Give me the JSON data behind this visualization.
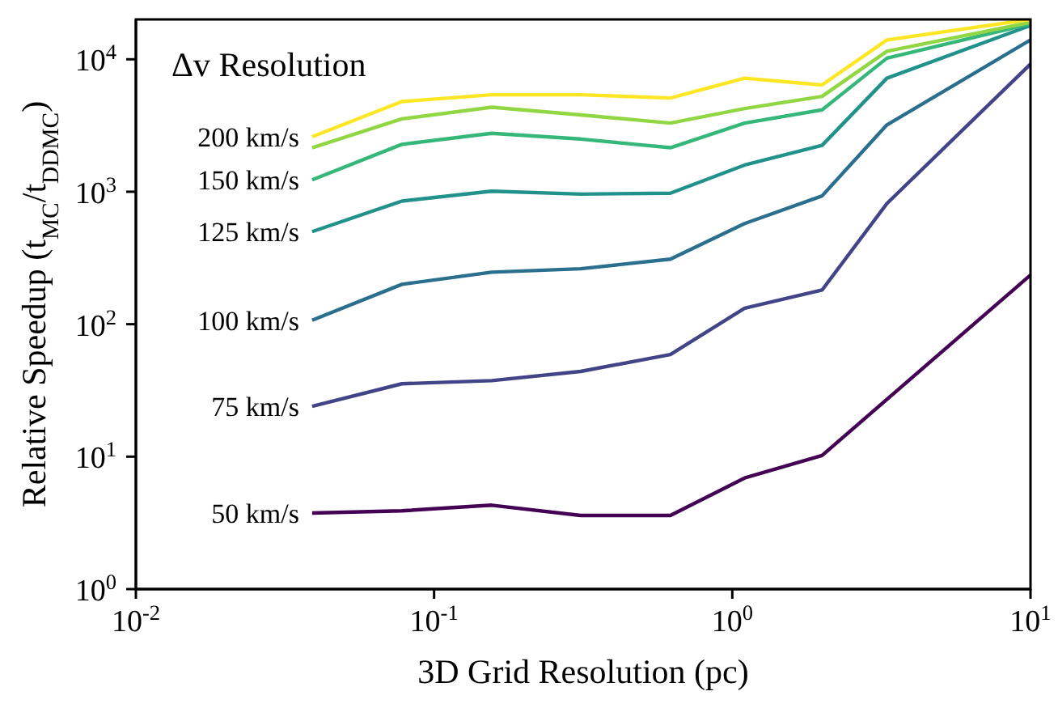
{
  "chart_data": {
    "type": "line",
    "xlabel": "3D Grid Resolution (pc)",
    "ylabel": "Relative Speedup (t$_{MC}$/t$_{DDMC}$)",
    "legend_title": "Δv Resolution",
    "log": "xy",
    "xlim": [
      0.01,
      10
    ],
    "ylim": [
      1,
      20000
    ],
    "xticks": [
      {
        "value": 0.01,
        "label": "10$^{-2}$"
      },
      {
        "value": 0.1,
        "label": "10$^{-1}$"
      },
      {
        "value": 1,
        "label": "10$^{0}$"
      },
      {
        "value": 10,
        "label": "10$^{1}$"
      }
    ],
    "yticks": [
      {
        "value": 1,
        "label": "10$^{0}$"
      },
      {
        "value": 10,
        "label": "10$^{1}$"
      },
      {
        "value": 100,
        "label": "10$^{2}$"
      },
      {
        "value": 1000,
        "label": "10$^{3}$"
      },
      {
        "value": 10000,
        "label": "10$^{4}$"
      }
    ],
    "x": [
      0.039,
      0.078,
      0.156,
      0.31,
      0.62,
      1.1,
      2,
      3.3,
      10
    ],
    "series": [
      {
        "color": "#440154",
        "name": "50 km/s",
        "x": [
          0.039,
          0.078,
          0.156,
          0.31,
          0.62,
          1.1,
          2,
          10
        ],
        "values": [
          3.75,
          3.9,
          4.3,
          3.6,
          3.6,
          6.9,
          10.2,
          235
        ]
      },
      {
        "color": "#414487",
        "name": "75 km/s",
        "values": [
          24,
          35.5,
          37.5,
          44,
          59,
          132,
          181,
          815,
          9200
        ]
      },
      {
        "color": "#2a6f8e",
        "name": "100 km/s",
        "values": [
          107,
          200,
          247,
          262,
          310,
          575,
          930,
          3200,
          14000
        ]
      },
      {
        "color": "#21918c",
        "name": "125 km/s",
        "values": [
          500,
          850,
          1010,
          960,
          975,
          1590,
          2240,
          7200,
          18000
        ]
      },
      {
        "color": "#35b779",
        "name": "150 km/s",
        "values": [
          1230,
          2280,
          2760,
          2500,
          2150,
          3300,
          4150,
          10200,
          18500
        ]
      },
      {
        "color": "#90d743",
        "values": [
          2150,
          3550,
          4350,
          3800,
          3300,
          4250,
          5250,
          11500,
          19000
        ]
      },
      {
        "color": "#fde725",
        "name": "200 km/s",
        "values": [
          2600,
          4800,
          5400,
          5400,
          5100,
          7200,
          6400,
          14000,
          20000
        ]
      }
    ],
    "marker": "none",
    "line_style": "solid"
  }
}
